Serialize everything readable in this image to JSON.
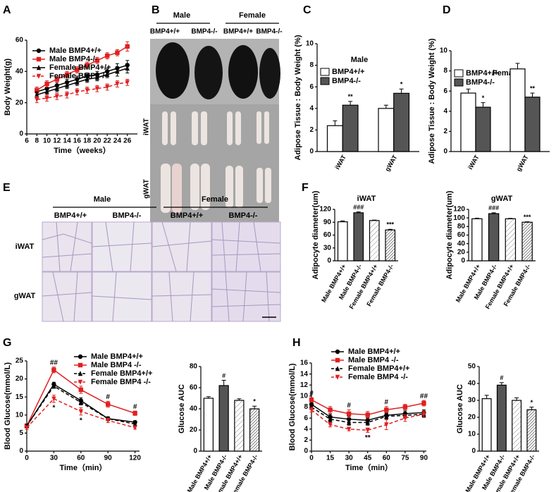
{
  "photo_panels": [
    {
      "panel": "B",
      "groups": [
        "Male",
        "Female"
      ],
      "genotypes": [
        "BMP4+/+",
        "BMP4-/-",
        "BMP4+/+",
        "BMP4-/-"
      ],
      "rows": [
        "iWAT",
        "gWAT"
      ]
    },
    {
      "panel": "E",
      "groups": [
        "Male",
        "Female"
      ],
      "genotypes": [
        "BMP4+/+",
        "BMP4-/-",
        "BMP4+/+",
        "BMP4-/-"
      ],
      "rows": [
        "iWAT",
        "gWAT"
      ]
    }
  ],
  "chart_data": [
    {
      "panel": "A",
      "type": "line",
      "ylabel": "Body Weight(g)",
      "xlabel": "Time（weeks）",
      "x": [
        8,
        10,
        12,
        14,
        16,
        18,
        20,
        22,
        24,
        26
      ],
      "xlim": [
        6,
        28
      ],
      "xticks": [
        6,
        8,
        10,
        12,
        14,
        16,
        18,
        20,
        22,
        24,
        26
      ],
      "ylim": [
        0,
        60
      ],
      "yticks": [
        0,
        20,
        40,
        60
      ],
      "legend": "upper left",
      "series": [
        {
          "name": "Male BMP4+/+",
          "color": "#000000",
          "marker": "circle",
          "dash": false,
          "values": [
            27,
            29,
            31,
            33,
            35,
            37,
            38,
            40,
            42,
            44
          ],
          "errors": [
            2,
            2,
            2,
            2,
            2,
            2,
            2,
            2,
            3,
            3
          ]
        },
        {
          "name": "Male BMP4-/-",
          "color": "#e02020",
          "marker": "square",
          "dash": false,
          "values": [
            28,
            32,
            35,
            38,
            41,
            44,
            47,
            50,
            52,
            56
          ],
          "errors": [
            2,
            2,
            2,
            2,
            2,
            2,
            2,
            2,
            2,
            3
          ]
        },
        {
          "name": "Female BMP4+/+",
          "color": "#000000",
          "marker": "triangle",
          "dash": false,
          "values": [
            25,
            27,
            29,
            31,
            33,
            35,
            36,
            38,
            40,
            42
          ],
          "errors": [
            2,
            2,
            2,
            2,
            2,
            2,
            2,
            2,
            3,
            3
          ]
        },
        {
          "name": "Female BMP4-/-",
          "color": "#e02020",
          "marker": "triangle-down",
          "dash": true,
          "values": [
            22,
            23,
            24,
            25,
            27,
            28,
            29,
            30,
            32,
            33
          ],
          "errors": [
            2,
            2,
            2,
            2,
            2,
            2,
            2,
            2,
            2,
            2
          ]
        }
      ]
    },
    {
      "panel": "C",
      "type": "bar",
      "title": "Male",
      "ylabel": "Adipose Tissue : Body Weight (%)",
      "categories": [
        "iWAT",
        "gWAT"
      ],
      "ylim": [
        0,
        10
      ],
      "yticks": [
        0,
        2,
        4,
        6,
        8,
        10
      ],
      "legend": "upper left",
      "series": [
        {
          "name": "BMP4+/+",
          "color": "#ffffff",
          "values": [
            2.4,
            4.0
          ],
          "errors": [
            0.45,
            0.3
          ]
        },
        {
          "name": "BMP4-/-",
          "color": "#555555",
          "values": [
            4.3,
            5.4
          ],
          "errors": [
            0.35,
            0.4
          ],
          "labels": [
            "**",
            "*"
          ]
        }
      ]
    },
    {
      "panel": "D",
      "type": "bar",
      "title": "Female",
      "ylabel": "Adipose Tissue : Body Weight (%)",
      "categories": [
        "iWAT",
        "gWAT"
      ],
      "ylim": [
        0,
        10
      ],
      "yticks": [
        0,
        2,
        4,
        6,
        8,
        10
      ],
      "legend": "upper left",
      "series": [
        {
          "name": "BMP4+/+",
          "color": "#ffffff",
          "values": [
            5.8,
            8.2
          ],
          "errors": [
            0.4,
            0.55
          ]
        },
        {
          "name": "BMP4-/-",
          "color": "#555555",
          "values": [
            4.4,
            5.4
          ],
          "errors": [
            0.45,
            0.4
          ],
          "labels": [
            "*",
            "**"
          ]
        }
      ]
    },
    {
      "panel": "F",
      "type": "bar",
      "title": "iWAT",
      "ylabel": "Adipocyte diameter(um)",
      "categories": [
        "Male BMP4+/+",
        "Male BMP4-/-",
        "Female BMP4+/+",
        "Female BMP4-/-"
      ],
      "ylim": [
        0,
        120
      ],
      "yticks": [
        0,
        30,
        60,
        90,
        120
      ],
      "values": [
        91,
        112,
        94,
        72
      ],
      "errors": [
        2,
        2,
        1,
        1.5
      ],
      "labels": [
        null,
        "###",
        null,
        "***"
      ],
      "colors": [
        "#ffffff",
        "#555555",
        "#ffffff",
        "#ffffff"
      ],
      "hatch": [
        null,
        null,
        "light",
        "dense"
      ]
    },
    {
      "type": "bar",
      "title": "gWAT",
      "ylabel": "Adipocyte diameter(um)",
      "categories": [
        "Male BMP4+/+",
        "Male BMP4-/-",
        "Female BMP4+/+",
        "Female BMP4-/-"
      ],
      "ylim": [
        0,
        120
      ],
      "yticks": [
        0,
        20,
        40,
        60,
        80,
        100,
        120
      ],
      "values": [
        98,
        110,
        98,
        90
      ],
      "errors": [
        1.5,
        2,
        1,
        1
      ],
      "labels": [
        null,
        "###",
        null,
        "***"
      ],
      "colors": [
        "#ffffff",
        "#555555",
        "#ffffff",
        "#ffffff"
      ],
      "hatch": [
        null,
        null,
        "light",
        "dense"
      ]
    },
    {
      "panel": "G",
      "type": "line",
      "ylabel": "Blood Glucose(mmol/L)",
      "xlabel": "Time（min）",
      "x": [
        0,
        30,
        60,
        90,
        120
      ],
      "xlim": [
        0,
        125
      ],
      "xticks": [
        0,
        30,
        60,
        90,
        120
      ],
      "ylim": [
        0,
        25
      ],
      "yticks": [
        0,
        5,
        10,
        15,
        20,
        25
      ],
      "legend": "upper right",
      "series": [
        {
          "name": "Male BMP4+/+",
          "color": "#000000",
          "marker": "circle",
          "dash": false,
          "values": [
            7,
            18.5,
            14,
            9,
            8
          ],
          "errors": [
            0.5,
            0.6,
            0.8,
            0.5,
            0.4
          ]
        },
        {
          "name": "Male BMP4 -/-",
          "color": "#e02020",
          "marker": "square",
          "dash": false,
          "values": [
            7,
            22.5,
            17,
            13,
            10.5
          ],
          "errors": [
            0.5,
            0.8,
            1,
            0.8,
            0.6
          ],
          "labels": [
            null,
            "##",
            null,
            "#",
            "#"
          ]
        },
        {
          "name": "Female BMP4+/+",
          "color": "#000000",
          "marker": "triangle",
          "dash": true,
          "values": [
            7,
            18,
            13.5,
            9,
            7.5
          ],
          "errors": [
            0.5,
            0.6,
            0.7,
            0.5,
            0.4
          ]
        },
        {
          "name": "Female BMP4 -/-",
          "color": "#e02020",
          "marker": "triangle-down",
          "dash": true,
          "values": [
            6.5,
            14.5,
            11,
            8.5,
            6.5
          ],
          "errors": [
            0.5,
            1,
            1,
            0.6,
            0.4
          ],
          "labels": [
            null,
            "*",
            "*",
            null,
            null
          ],
          "label_position": "below"
        }
      ]
    },
    {
      "type": "bar",
      "ylabel": "Glucose AUC",
      "categories": [
        "Male BMP4+/+",
        "Male BMP4-/-",
        "Female BMP4+/+",
        "Female BMP4-/-"
      ],
      "ylim": [
        0,
        80
      ],
      "yticks": [
        0,
        20,
        40,
        60,
        80
      ],
      "values": [
        50,
        62,
        48,
        40
      ],
      "errors": [
        1.5,
        5,
        1.5,
        2.5
      ],
      "labels": [
        null,
        "#",
        null,
        "*"
      ],
      "colors": [
        "#ffffff",
        "#555555",
        "#ffffff",
        "#ffffff"
      ],
      "hatch": [
        null,
        null,
        "light",
        "dense"
      ]
    },
    {
      "panel": "H",
      "type": "line",
      "ylabel": "Blood Glucose(mmol/L)",
      "xlabel": "Time（min）",
      "x": [
        0,
        15,
        30,
        45,
        60,
        75,
        90
      ],
      "xlim": [
        0,
        92
      ],
      "xticks": [
        0,
        15,
        30,
        45,
        60,
        75,
        90
      ],
      "ylim": [
        0,
        16
      ],
      "yticks": [
        0,
        2,
        4,
        6,
        8,
        10,
        12,
        14,
        16
      ],
      "legend": "upper right",
      "series": [
        {
          "name": "Male BMP4+/+",
          "color": "#000000",
          "marker": "circle",
          "dash": false,
          "values": [
            8.5,
            6.2,
            5.8,
            5.6,
            6.5,
            6.8,
            7
          ],
          "errors": [
            0.4,
            0.5,
            0.5,
            0.5,
            0.5,
            0.5,
            0.5
          ]
        },
        {
          "name": "Male BMP4 -/-",
          "color": "#e02020",
          "marker": "square",
          "dash": false,
          "values": [
            9.3,
            7.5,
            6.8,
            6.6,
            7.5,
            8,
            8.7
          ],
          "errors": [
            0.4,
            0.6,
            0.7,
            0.6,
            0.6,
            0.5,
            0.5
          ],
          "labels": [
            "#",
            null,
            "#",
            null,
            "#",
            null,
            "##"
          ]
        },
        {
          "name": "Female BMP4+/+",
          "color": "#000000",
          "marker": "triangle",
          "dash": true,
          "values": [
            8,
            5.8,
            5.2,
            5.2,
            6.3,
            6.5,
            6.7
          ],
          "errors": [
            0.4,
            0.5,
            0.5,
            0.5,
            0.5,
            0.5,
            0.5
          ]
        },
        {
          "name": "Female BMP4 -/-",
          "color": "#e02020",
          "marker": "triangle-down",
          "dash": true,
          "values": [
            7.5,
            4.8,
            4,
            3.8,
            4.8,
            6,
            6.7
          ],
          "errors": [
            0.4,
            0.4,
            0.3,
            0.4,
            0.9,
            0.6,
            0.6
          ],
          "labels": [
            null,
            null,
            null,
            "**",
            null,
            null,
            null
          ],
          "label_position": "below"
        }
      ]
    },
    {
      "type": "bar",
      "ylabel": "Glucose AUC",
      "categories": [
        "Male BMP4+/+",
        "Male BMP4-/-",
        "Female BMP4+/+",
        "Female BMP4-/-"
      ],
      "ylim": [
        0,
        50
      ],
      "yticks": [
        0,
        10,
        20,
        30,
        40,
        50
      ],
      "values": [
        31,
        39,
        30,
        24.5
      ],
      "errors": [
        2,
        1.5,
        1.5,
        1.5
      ],
      "labels": [
        null,
        "#",
        null,
        "*"
      ],
      "colors": [
        "#ffffff",
        "#555555",
        "#ffffff",
        "#ffffff"
      ],
      "hatch": [
        null,
        null,
        "light",
        "dense"
      ]
    }
  ]
}
